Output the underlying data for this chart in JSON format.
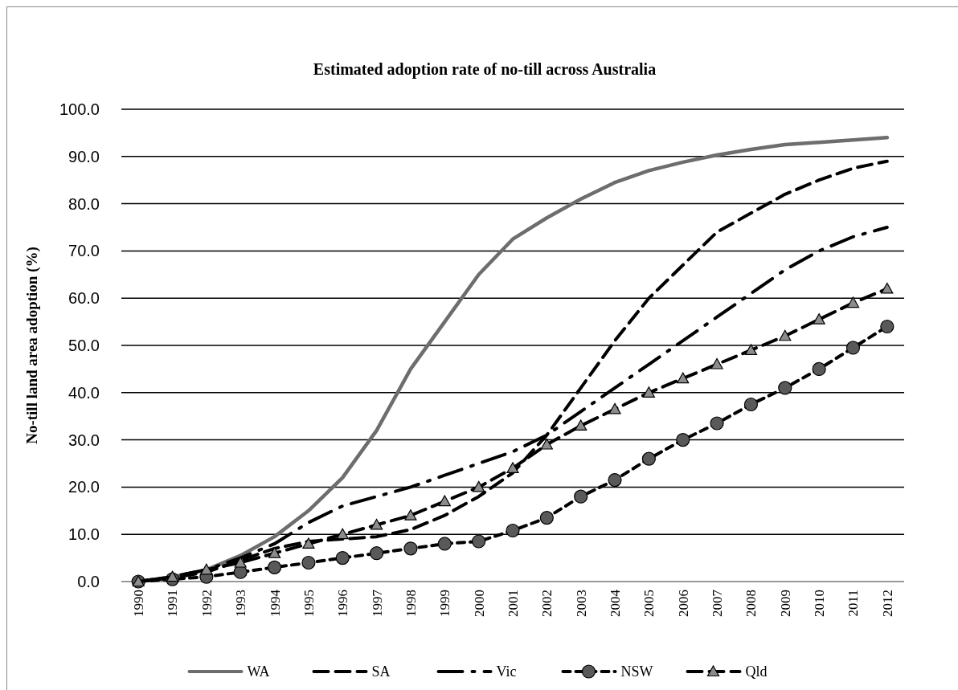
{
  "chart_data": {
    "type": "line",
    "title": "Estimated adoption rate of no-till across Australia",
    "ylabel": "No-till land area adoption (%)",
    "categories": [
      "1990",
      "1991",
      "1992",
      "1993",
      "1994",
      "1995",
      "1996",
      "1997",
      "1998",
      "1999",
      "2000",
      "2001",
      "2002",
      "2003",
      "2004",
      "2005",
      "2006",
      "2007",
      "2008",
      "2009",
      "2010",
      "2011",
      "2012"
    ],
    "ylim": [
      0,
      100
    ],
    "yticks": [
      {
        "value": 0,
        "label": "0.0"
      },
      {
        "value": 10,
        "label": "10.0"
      },
      {
        "value": 20,
        "label": "20.0"
      },
      {
        "value": 30,
        "label": "30.0"
      },
      {
        "value": 40,
        "label": "40.0"
      },
      {
        "value": 50,
        "label": "50.0"
      },
      {
        "value": 60,
        "label": "60.0"
      },
      {
        "value": 70,
        "label": "70.0"
      },
      {
        "value": 80,
        "label": "80.0"
      },
      {
        "value": 90,
        "label": "90.0"
      },
      {
        "value": 100,
        "label": "100.0"
      }
    ],
    "grid": "y",
    "legend": "bottom",
    "series": [
      {
        "name": "WA",
        "color": "#6d6d6d",
        "line_style": "solid",
        "marker": "none",
        "values": [
          0,
          1,
          2.5,
          5.5,
          9.5,
          15,
          22,
          32,
          45,
          55,
          65,
          72.5,
          77,
          81,
          84.5,
          87,
          88.8,
          90.3,
          91.5,
          92.5,
          93,
          93.5,
          94
        ]
      },
      {
        "name": "SA",
        "color": "#000000",
        "line_style": "dashed",
        "marker": "none",
        "values": [
          0,
          0.8,
          2,
          4.5,
          7,
          8.5,
          9,
          9.5,
          11,
          14,
          18,
          23,
          31,
          41,
          51,
          60,
          67,
          74,
          78,
          82,
          85,
          87.5,
          89
        ]
      },
      {
        "name": "Vic",
        "color": "#000000",
        "line_style": "dashdot",
        "marker": "none",
        "values": [
          0,
          1,
          2.5,
          5,
          8,
          12.5,
          16,
          18,
          20,
          22.5,
          25,
          27.5,
          31,
          36,
          41,
          46,
          51,
          56,
          61,
          66,
          70,
          73,
          75
        ]
      },
      {
        "name": "NSW",
        "color": "#000000",
        "line_style": "dotted",
        "marker": "circle",
        "values": [
          0,
          0.5,
          1,
          2,
          3,
          4,
          5,
          6,
          7,
          8,
          8.5,
          10.8,
          13.5,
          18,
          21.5,
          26,
          30,
          33.5,
          37.5,
          41,
          45,
          49.5,
          54
        ]
      },
      {
        "name": "Qld",
        "color": "#000000",
        "line_style": "dashed",
        "marker": "triangle",
        "values": [
          0,
          1,
          2.5,
          4,
          6,
          8,
          10,
          12,
          14,
          17,
          20,
          24,
          29,
          33,
          36.5,
          40,
          43,
          46,
          49,
          52,
          55.5,
          59,
          62
        ]
      }
    ]
  }
}
